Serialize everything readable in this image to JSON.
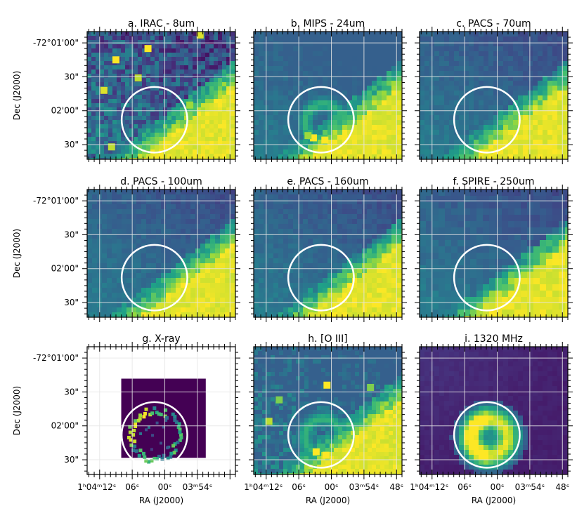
{
  "figure": {
    "ra_axis_label": "RA (J2000)",
    "dec_axis_label": "Dec (J2000)"
  },
  "colors": {
    "frame": "#000000",
    "grid": "#e6e6e6",
    "circle": "#ffffff",
    "viridis": [
      "#440154",
      "#46337e",
      "#365c8d",
      "#277f8e",
      "#1fa187",
      "#4ac16d",
      "#a0da39",
      "#fde725"
    ]
  },
  "chart_data": [
    {
      "type": "heatmap",
      "title": "a. IRAC - 8um",
      "ylabel": "Dec (J2000)",
      "yticks": [
        "-72°01'00\"",
        "30\"",
        "02'00\"",
        "30\""
      ],
      "xticks": [],
      "style": "noisy",
      "sources": [
        {
          "ra_s": 9.0,
          "dec_s": 15,
          "level": 1.0
        },
        {
          "ra_s": 11.2,
          "dec_s": 42,
          "level": 0.95
        },
        {
          "ra_s": 4.9,
          "dec_s": 31,
          "level": 0.9
        },
        {
          "ra_s": 3.1,
          "dec_s": 5,
          "level": 1.0
        },
        {
          "ra_s": 53.5,
          "dec_s": -7,
          "level": 0.95
        },
        {
          "ra_s": 9.8,
          "dec_s": 92,
          "level": 0.9
        },
        {
          "ra_s": 55.4,
          "dec_s": 55,
          "level": 0.85
        }
      ],
      "bright_region": "lower-right",
      "circle": {
        "center_ra_s": 1.9,
        "center_dec_s": 68,
        "radius_arcsec": 29
      }
    },
    {
      "type": "heatmap",
      "title": "b. MIPS - 24um",
      "ylabel": "",
      "yticks": [],
      "xticks": [],
      "style": "smooth",
      "ring": true,
      "sources": [
        {
          "ra_s": 3.3,
          "dec_s": 84,
          "level": 1.0
        },
        {
          "ra_s": 1.2,
          "dec_s": 86,
          "level": 1.0
        },
        {
          "ra_s": 4.3,
          "dec_s": 82,
          "level": 0.85
        }
      ],
      "bright_region": "lower-right",
      "circle": {
        "center_ra_s": 1.9,
        "center_dec_s": 68,
        "radius_arcsec": 29
      }
    },
    {
      "type": "heatmap",
      "title": "c. PACS - 70um",
      "ylabel": "",
      "yticks": [],
      "xticks": [],
      "style": "smooth",
      "sources": [],
      "bright_region": "lower-right",
      "circle": {
        "center_ra_s": 1.9,
        "center_dec_s": 68,
        "radius_arcsec": 29
      }
    },
    {
      "type": "heatmap",
      "title": "d. PACS - 100um",
      "ylabel": "Dec (J2000)",
      "yticks": [
        "-72°01'00\"",
        "30\"",
        "02'00\"",
        "30\""
      ],
      "xticks": [],
      "style": "smooth",
      "sources": [],
      "bright_region": "lower-right",
      "circle": {
        "center_ra_s": 1.9,
        "center_dec_s": 68,
        "radius_arcsec": 29
      }
    },
    {
      "type": "heatmap",
      "title": "e. PACS - 160um",
      "ylabel": "",
      "yticks": [],
      "xticks": [],
      "style": "smooth",
      "sources": [],
      "bright_region": "lower-right",
      "circle": {
        "center_ra_s": 1.9,
        "center_dec_s": 68,
        "radius_arcsec": 29
      }
    },
    {
      "type": "heatmap",
      "title": "f. SPIRE - 250um",
      "ylabel": "",
      "yticks": [],
      "xticks": [],
      "style": "blocky",
      "sources": [],
      "bright_region": "lower-right",
      "circle": {
        "center_ra_s": 1.9,
        "center_dec_s": 68,
        "radius_arcsec": 29
      }
    },
    {
      "type": "heatmap",
      "title": "g. X-ray",
      "ylabel": "Dec (J2000)",
      "yticks": [
        "-72°01'00\"",
        "30\"",
        "02'00\"",
        "30\""
      ],
      "xticks": [
        "1ʰ04ᵐ12ˢ",
        "06ˢ",
        "00ˢ",
        "03ᵐ54ˢ"
      ],
      "xlabel": "RA (J2000)",
      "style": "xray",
      "sources": [],
      "bright_region": "none",
      "circle": {
        "center_ra_s": 1.9,
        "center_dec_s": 68,
        "radius_arcsec": 29
      }
    },
    {
      "type": "heatmap",
      "title": "h. [O III]",
      "ylabel": "",
      "yticks": [],
      "xticks": [
        "1ʰ04ᵐ12ˢ",
        "06ˢ",
        "00ˢ",
        "03ᵐ54ˢ",
        "48ˢ"
      ],
      "xlabel": "RA (J2000)",
      "style": "noisy",
      "ring": true,
      "sources": [
        {
          "ra_s": 2.8,
          "dec_s": 83,
          "level": 1.0
        },
        {
          "ra_s": 1.0,
          "dec_s": 86,
          "level": 1.0
        },
        {
          "ra_s": 0.8,
          "dec_s": 24,
          "level": 1.0
        },
        {
          "ra_s": 11.5,
          "dec_s": 56,
          "level": 0.9
        },
        {
          "ra_s": 9.6,
          "dec_s": 37,
          "level": 0.8
        },
        {
          "ra_s": 52.8,
          "dec_s": 26,
          "level": 0.8
        }
      ],
      "bright_region": "lower-right",
      "circle": {
        "center_ra_s": 1.9,
        "center_dec_s": 68,
        "radius_arcsec": 29
      }
    },
    {
      "type": "heatmap",
      "title": "i. 1320 MHz",
      "ylabel": "",
      "yticks": [],
      "xticks": [
        "1ʰ04ᵐ12ˢ",
        "06ˢ",
        "00ˢ",
        "03ᵐ54ˢ",
        "48ˢ"
      ],
      "xlabel": "RA (J2000)",
      "style": "radio",
      "sources": [],
      "bright_region": "none",
      "circle": {
        "center_ra_s": 1.9,
        "center_dec_s": 68,
        "radius_arcsec": 29
      }
    }
  ]
}
